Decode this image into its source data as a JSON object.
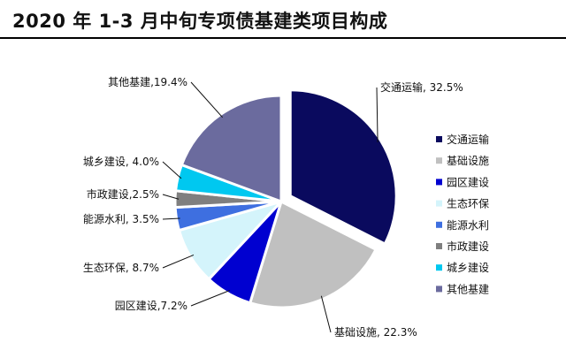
{
  "title": "2020 年 1-3 月中旬专项债基建类项目构成",
  "chart_data": {
    "type": "pie",
    "title": "2020 年 1-3 月中旬专项债基建类项目构成",
    "slices": [
      {
        "name": "交通运输",
        "value": 32.5,
        "label": "交通运输, 32.5%",
        "color": "#0a0a5e"
      },
      {
        "name": "基础设施",
        "value": 22.3,
        "label": "基础设施, 22.3%",
        "color": "#c0c0c0"
      },
      {
        "name": "园区建设",
        "value": 7.2,
        "label": "园区建设,7.2%",
        "color": "#0000d0"
      },
      {
        "name": "生态环保",
        "value": 8.7,
        "label": "生态环保, 8.7%",
        "color": "#d4f4fb"
      },
      {
        "name": "能源水利",
        "value": 3.5,
        "label": "能源水利, 3.5%",
        "color": "#3e6fe0"
      },
      {
        "name": "市政建设",
        "value": 2.5,
        "label": "市政建设,2.5%",
        "color": "#7f7f7f"
      },
      {
        "name": "城乡建设",
        "value": 4.0,
        "label": "城乡建设, 4.0%",
        "color": "#00c8f0"
      },
      {
        "name": "其他基建",
        "value": 19.4,
        "label": "其他基建,19.4%",
        "color": "#6b6b9e"
      }
    ],
    "legend_position": "right"
  }
}
